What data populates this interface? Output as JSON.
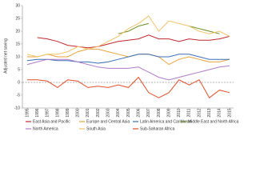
{
  "chart_data": {
    "type": "line",
    "y_label": "Adjusted net saving",
    "categories": [
      "1995",
      "1996",
      "1997",
      "1998",
      "1999",
      "2000",
      "2001",
      "2002",
      "2003",
      "2004",
      "2005",
      "2006",
      "2007",
      "2008",
      "2009",
      "2010",
      "2011",
      "2012",
      "2013",
      "2014",
      "2015"
    ],
    "ylim": [
      -10,
      30
    ],
    "yticks": [
      -10,
      -5,
      0,
      5,
      10,
      15,
      20,
      25,
      30
    ],
    "zero_line": true,
    "series": [
      {
        "name": "East Asia and Pacific",
        "color": "#c0282d",
        "values": [
          null,
          17.5,
          17,
          16,
          14.5,
          14,
          13.5,
          14,
          15,
          16,
          16.5,
          17,
          18.5,
          17,
          17,
          16,
          17,
          16.5,
          16.5,
          17,
          18
        ]
      },
      {
        "name": "Europe and Central Asia",
        "color": "#e8a33a",
        "values": [
          10,
          10,
          11,
          10,
          10,
          12,
          13,
          13,
          12,
          11,
          10,
          11,
          11,
          10,
          7,
          9,
          10,
          9,
          8,
          8,
          9
        ]
      },
      {
        "name": "Latin America and Caribbean",
        "color": "#3b6fb6",
        "values": [
          8.5,
          9,
          9,
          8.5,
          8.5,
          8,
          8,
          7.5,
          8,
          9,
          10,
          11,
          11,
          10,
          10,
          11,
          11,
          10,
          9,
          9,
          9
        ]
      },
      {
        "name": "Middle East and North Africa",
        "color": "#6b8e23",
        "values": [
          null,
          null,
          null,
          null,
          null,
          null,
          null,
          null,
          null,
          19,
          20,
          22,
          23,
          null,
          null,
          null,
          22,
          21,
          20,
          19,
          null
        ]
      },
      {
        "name": "North America",
        "color": "#b07cc6",
        "values": [
          7,
          8,
          9,
          9,
          9,
          8,
          7,
          6,
          5.5,
          5.5,
          5.5,
          6,
          4,
          2,
          1,
          2,
          3,
          4,
          5,
          6,
          6.5
        ]
      },
      {
        "name": "South Asia",
        "color": "#f2c26b",
        "values": [
          11,
          10,
          11,
          11,
          12,
          14,
          13,
          14,
          16,
          18,
          21,
          23,
          26,
          20,
          24,
          23,
          22,
          20,
          19,
          20,
          18
        ]
      },
      {
        "name": "Sub-Saharan Africa",
        "color": "#e0502a",
        "values": [
          1,
          1,
          0.5,
          -2,
          1,
          0.5,
          -2,
          -1.5,
          -2,
          -1,
          -2,
          2,
          -4,
          -6,
          -4,
          1,
          -1,
          1,
          -6,
          -3,
          -4
        ]
      }
    ]
  }
}
